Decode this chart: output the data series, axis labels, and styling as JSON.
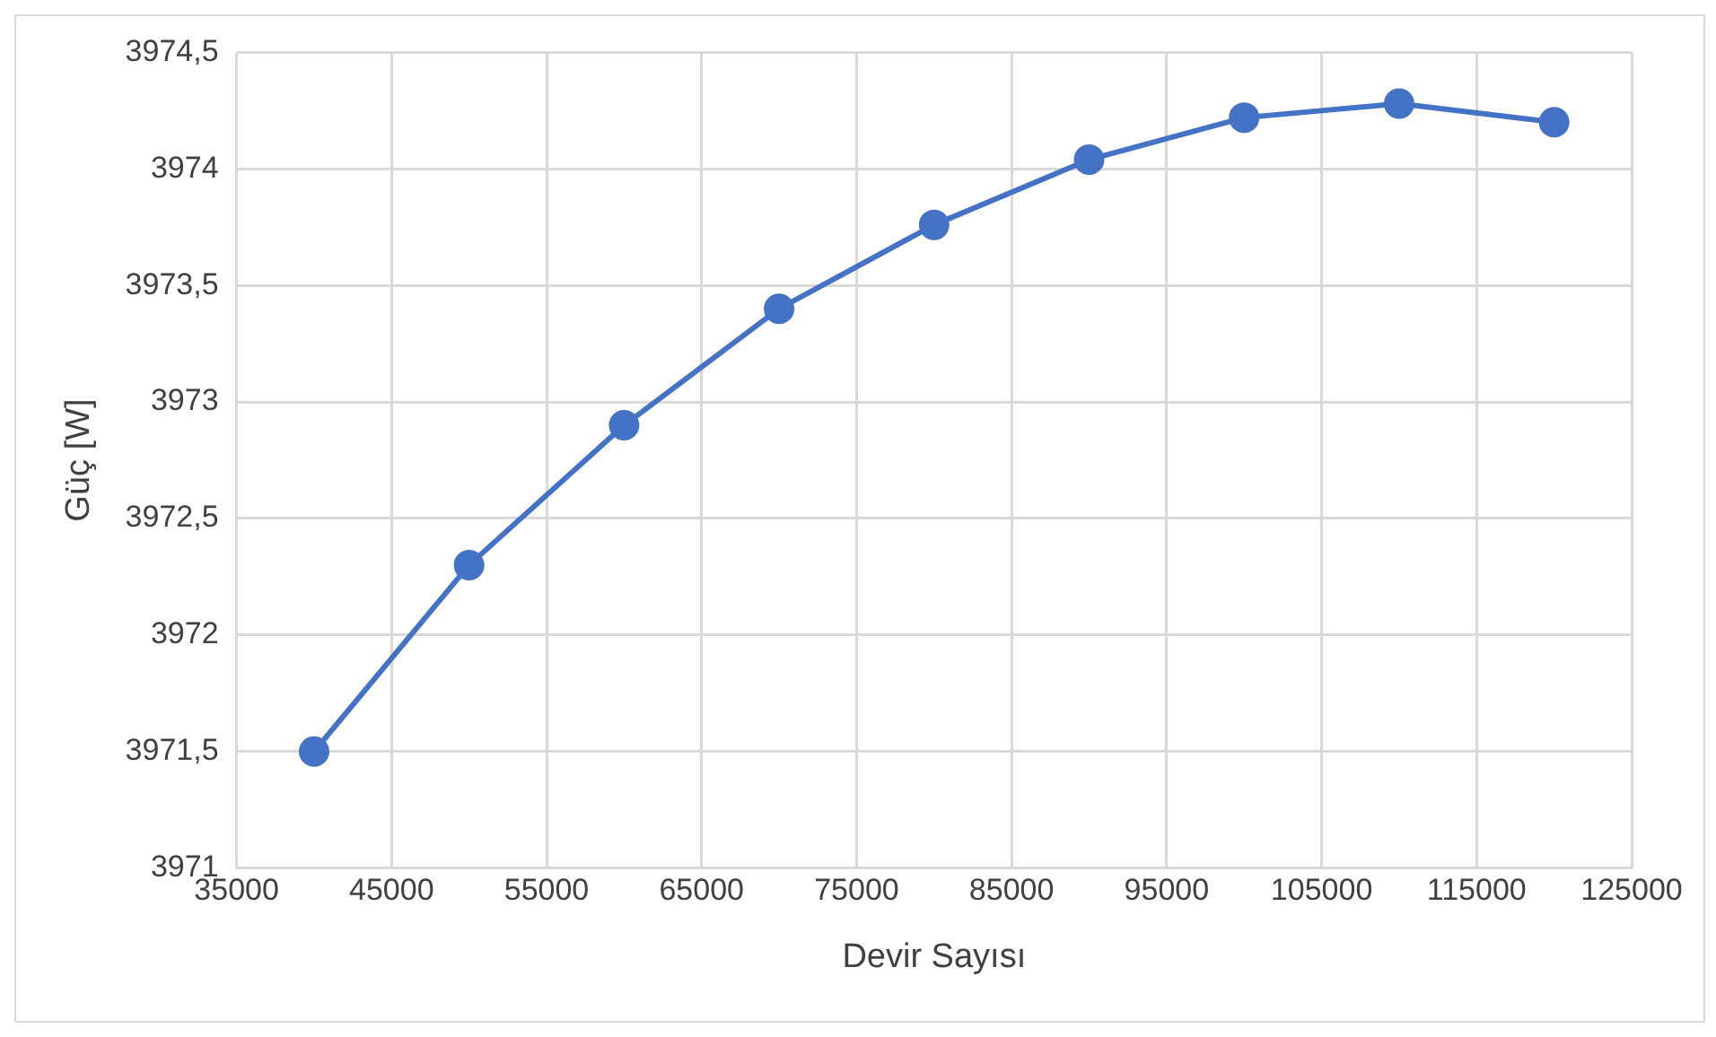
{
  "chart_data": {
    "type": "line",
    "xlabel": "Devir Sayısı",
    "ylabel": "Güç [W]",
    "x": [
      40000,
      50000,
      60000,
      70000,
      80000,
      90000,
      100000,
      110000,
      120000
    ],
    "series": [
      {
        "color": "#4472c4",
        "values": [
          3971.5,
          3972.3,
          3972.9,
          3973.4,
          3973.76,
          3974.04,
          3974.22,
          3974.28,
          3974.2
        ]
      }
    ],
    "xlim": [
      35000,
      125000
    ],
    "xticks": [
      35000,
      45000,
      55000,
      65000,
      75000,
      85000,
      95000,
      105000,
      115000,
      125000
    ],
    "ylim": [
      3971,
      3974.5
    ],
    "yticks": [
      3971,
      {
        "value": 3971.5,
        "label": "3971,5"
      },
      3972,
      {
        "value": 3972.5,
        "label": "3972,5"
      },
      3973,
      {
        "value": 3973.5,
        "label": "3973,5"
      },
      3974,
      {
        "value": 3974.5,
        "label": "3974,5"
      }
    ],
    "grid": true,
    "marker": "circle",
    "line_style": "solid",
    "legend": false
  }
}
